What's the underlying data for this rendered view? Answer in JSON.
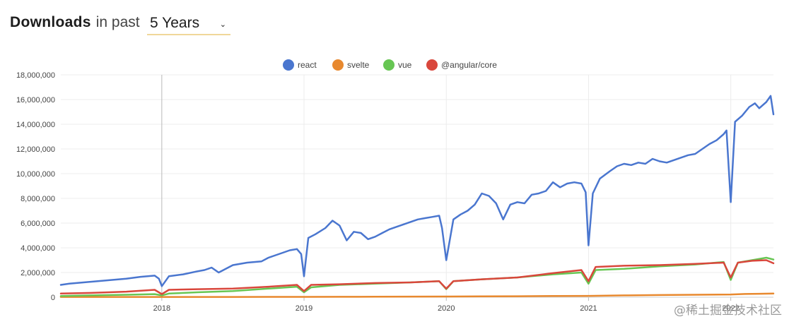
{
  "header": {
    "title_strong": "Downloads",
    "title_light": "in past",
    "period_value": "5 Years",
    "caret_icon": "chevron-down-icon"
  },
  "watermark": "@稀土掘金技术社区",
  "chart_data": {
    "type": "line",
    "title": "",
    "xlabel": "",
    "ylabel": "",
    "ylim": [
      0,
      18000000
    ],
    "yticks": [
      0,
      2000000,
      4000000,
      6000000,
      8000000,
      10000000,
      12000000,
      14000000,
      16000000,
      18000000
    ],
    "ytick_labels": [
      "0",
      "2,000,000",
      "4,000,000",
      "6,000,000",
      "8,000,000",
      "10,000,000",
      "12,000,000",
      "14,000,000",
      "16,000,000",
      "18,000,000"
    ],
    "xlim": [
      2017.29,
      2022.3
    ],
    "xticks": [
      2018,
      2019,
      2020,
      2021,
      2022
    ],
    "xtick_labels": [
      "2018",
      "2019",
      "2020",
      "2021",
      "2022"
    ],
    "grid": true,
    "legend_position": "top-center",
    "colors": {
      "react": "#4a76cf",
      "svelte": "#e8892f",
      "vue": "#67c653",
      "angular": "#d9473c"
    },
    "series": [
      {
        "name": "react",
        "x": [
          2017.29,
          2017.35,
          2017.45,
          2017.55,
          2017.65,
          2017.75,
          2017.85,
          2017.95,
          2017.98,
          2018.0,
          2018.05,
          2018.15,
          2018.25,
          2018.3,
          2018.35,
          2018.4,
          2018.5,
          2018.6,
          2018.7,
          2018.75,
          2018.8,
          2018.85,
          2018.9,
          2018.95,
          2018.98,
          2019.0,
          2019.03,
          2019.08,
          2019.15,
          2019.2,
          2019.25,
          2019.3,
          2019.35,
          2019.4,
          2019.45,
          2019.5,
          2019.55,
          2019.6,
          2019.65,
          2019.7,
          2019.75,
          2019.8,
          2019.85,
          2019.9,
          2019.95,
          2019.97,
          2020.0,
          2020.05,
          2020.1,
          2020.15,
          2020.2,
          2020.25,
          2020.3,
          2020.35,
          2020.4,
          2020.45,
          2020.5,
          2020.55,
          2020.6,
          2020.65,
          2020.7,
          2020.75,
          2020.8,
          2020.85,
          2020.9,
          2020.95,
          2020.98,
          2021.0,
          2021.03,
          2021.08,
          2021.15,
          2021.2,
          2021.25,
          2021.3,
          2021.35,
          2021.4,
          2021.45,
          2021.5,
          2021.55,
          2021.6,
          2021.65,
          2021.7,
          2021.75,
          2021.8,
          2021.85,
          2021.9,
          2021.95,
          2021.97,
          2022.0,
          2022.03,
          2022.08,
          2022.13,
          2022.17,
          2022.2,
          2022.25,
          2022.28,
          2022.3
        ],
        "values": [
          1000000,
          1100000,
          1200000,
          1300000,
          1400000,
          1500000,
          1650000,
          1750000,
          1500000,
          900000,
          1700000,
          1850000,
          2100000,
          2200000,
          2400000,
          2000000,
          2600000,
          2800000,
          2900000,
          3200000,
          3400000,
          3600000,
          3800000,
          3900000,
          3500000,
          1700000,
          4800000,
          5100000,
          5600000,
          6200000,
          5800000,
          4600000,
          5300000,
          5200000,
          4700000,
          4900000,
          5200000,
          5500000,
          5700000,
          5900000,
          6100000,
          6300000,
          6400000,
          6500000,
          6600000,
          5600000,
          3000000,
          6300000,
          6700000,
          7000000,
          7500000,
          8400000,
          8200000,
          7600000,
          6300000,
          7500000,
          7700000,
          7600000,
          8300000,
          8400000,
          8600000,
          9300000,
          8900000,
          9200000,
          9300000,
          9200000,
          8500000,
          4200000,
          8400000,
          9600000,
          10200000,
          10600000,
          10800000,
          10700000,
          10900000,
          10800000,
          11200000,
          11000000,
          10900000,
          11100000,
          11300000,
          11500000,
          11600000,
          12000000,
          12400000,
          12700000,
          13200000,
          13500000,
          7700000,
          14200000,
          14700000,
          15400000,
          15700000,
          15300000,
          15800000,
          16300000,
          14800000
        ]
      },
      {
        "name": "svelte",
        "x": [
          2017.29,
          2017.5,
          2017.75,
          2018.0,
          2018.25,
          2018.5,
          2018.75,
          2019.0,
          2019.25,
          2019.5,
          2019.75,
          2020.0,
          2020.25,
          2020.5,
          2020.75,
          2021.0,
          2021.25,
          2021.5,
          2021.75,
          2022.0,
          2022.1,
          2022.2,
          2022.3
        ],
        "values": [
          20000,
          20000,
          20000,
          20000,
          25000,
          25000,
          30000,
          30000,
          35000,
          40000,
          50000,
          55000,
          70000,
          80000,
          100000,
          110000,
          150000,
          180000,
          200000,
          220000,
          260000,
          280000,
          300000
        ]
      },
      {
        "name": "vue",
        "x": [
          2017.29,
          2017.5,
          2017.75,
          2017.95,
          2018.0,
          2018.05,
          2018.25,
          2018.5,
          2018.75,
          2018.95,
          2019.0,
          2019.05,
          2019.25,
          2019.5,
          2019.75,
          2019.95,
          2020.0,
          2020.05,
          2020.25,
          2020.5,
          2020.75,
          2020.95,
          2021.0,
          2021.05,
          2021.25,
          2021.5,
          2021.75,
          2021.95,
          2022.0,
          2022.05,
          2022.15,
          2022.25,
          2022.3
        ],
        "values": [
          100000,
          150000,
          200000,
          250000,
          150000,
          300000,
          400000,
          500000,
          700000,
          850000,
          400000,
          800000,
          1000000,
          1100000,
          1200000,
          1300000,
          650000,
          1300000,
          1450000,
          1600000,
          1850000,
          2000000,
          1100000,
          2200000,
          2300000,
          2500000,
          2650000,
          2850000,
          1400000,
          2800000,
          3000000,
          3200000,
          3050000
        ]
      },
      {
        "name": "@angular/core",
        "x": [
          2017.29,
          2017.5,
          2017.75,
          2017.95,
          2018.0,
          2018.05,
          2018.25,
          2018.5,
          2018.75,
          2018.95,
          2019.0,
          2019.05,
          2019.25,
          2019.5,
          2019.75,
          2019.95,
          2020.0,
          2020.05,
          2020.25,
          2020.5,
          2020.75,
          2020.95,
          2021.0,
          2021.05,
          2021.25,
          2021.5,
          2021.75,
          2021.95,
          2022.0,
          2022.05,
          2022.15,
          2022.25,
          2022.3
        ],
        "values": [
          300000,
          350000,
          450000,
          600000,
          250000,
          600000,
          650000,
          700000,
          850000,
          1000000,
          500000,
          1000000,
          1050000,
          1150000,
          1200000,
          1300000,
          700000,
          1300000,
          1450000,
          1600000,
          1950000,
          2200000,
          1300000,
          2450000,
          2550000,
          2600000,
          2700000,
          2800000,
          1600000,
          2800000,
          2950000,
          3000000,
          2750000
        ]
      }
    ]
  }
}
